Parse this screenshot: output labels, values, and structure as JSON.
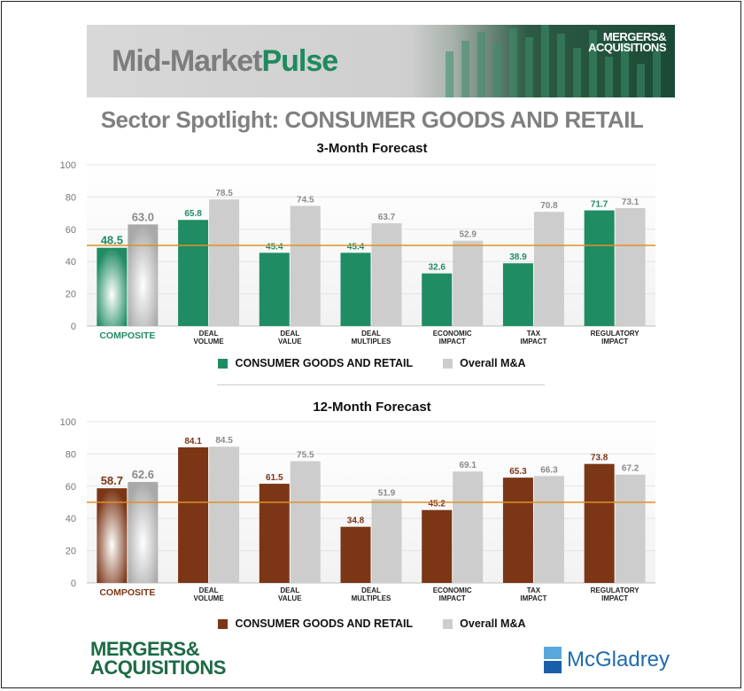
{
  "header": {
    "title_part1": "Mid-Market",
    "title_part2": "Pulse",
    "brand_line1": "MERGERS&",
    "brand_line2": "ACQUISITIONS"
  },
  "spotlight": "Sector Spotlight: CONSUMER GOODS AND RETAIL",
  "colors": {
    "green": "#1f8c63",
    "brown": "#7b3616",
    "gray": "#cdcdcd",
    "reference": "#e0902a"
  },
  "legend": {
    "series1": "CONSUMER GOODS AND RETAIL",
    "series2": "Overall M&A"
  },
  "chart_data": [
    {
      "type": "bar",
      "title": "3-Month Forecast",
      "categories": [
        [
          "COMPOSITE"
        ],
        [
          "DEAL",
          "VOLUME"
        ],
        [
          "DEAL",
          "VALUE"
        ],
        [
          "DEAL",
          "MULTIPLES"
        ],
        [
          "ECONOMIC",
          "IMPACT"
        ],
        [
          "TAX",
          "IMPACT"
        ],
        [
          "REGULATORY",
          "IMPACT"
        ]
      ],
      "series": [
        {
          "name": "CONSUMER GOODS AND RETAIL",
          "values": [
            48.5,
            65.8,
            45.4,
            45.4,
            32.6,
            38.9,
            71.7
          ],
          "labels": [
            "48.5",
            "65.8",
            "45.4",
            "45.4",
            "32.6",
            "38.9",
            "71.7"
          ]
        },
        {
          "name": "Overall M&A",
          "values": [
            63.0,
            78.5,
            74.5,
            63.7,
            52.9,
            70.8,
            73.1
          ],
          "labels": [
            "63.0",
            "78.5",
            "74.5",
            "63.7",
            "52.9",
            "70.8",
            "73.1"
          ]
        }
      ],
      "ylim": [
        0,
        100
      ],
      "yticks": [
        "0",
        "20",
        "40",
        "60",
        "80",
        "100"
      ],
      "reference_line": 50,
      "series1_color": "#1f8c63",
      "grid": true
    },
    {
      "type": "bar",
      "title": "12-Month Forecast",
      "categories": [
        [
          "COMPOSITE"
        ],
        [
          "DEAL",
          "VOLUME"
        ],
        [
          "DEAL",
          "VALUE"
        ],
        [
          "DEAL",
          "MULTIPLES"
        ],
        [
          "ECONOMIC",
          "IMPACT"
        ],
        [
          "TAX",
          "IMPACT"
        ],
        [
          "REGULATORY",
          "IMPACT"
        ]
      ],
      "series": [
        {
          "name": "CONSUMER GOODS AND RETAIL",
          "values": [
            58.7,
            84.1,
            61.5,
            34.8,
            45.2,
            65.3,
            73.8
          ],
          "labels": [
            "58.7",
            "84.1",
            "61.5",
            "34.8",
            "45.2",
            "65.3",
            "73.8"
          ]
        },
        {
          "name": "Overall M&A",
          "values": [
            62.6,
            84.5,
            75.5,
            51.9,
            69.1,
            66.3,
            67.2
          ],
          "labels": [
            "62.6",
            "84.5",
            "75.5",
            "51.9",
            "69.1",
            "66.3",
            "67.2"
          ]
        }
      ],
      "ylim": [
        0,
        100
      ],
      "yticks": [
        "0",
        "20",
        "40",
        "60",
        "80",
        "100"
      ],
      "reference_line": 50,
      "series1_color": "#7b3616",
      "grid": true
    }
  ],
  "footer": {
    "ma_line1": "MERGERS&",
    "ma_line2": "ACQUISITIONS",
    "mcgladrey": "McGladrey"
  }
}
